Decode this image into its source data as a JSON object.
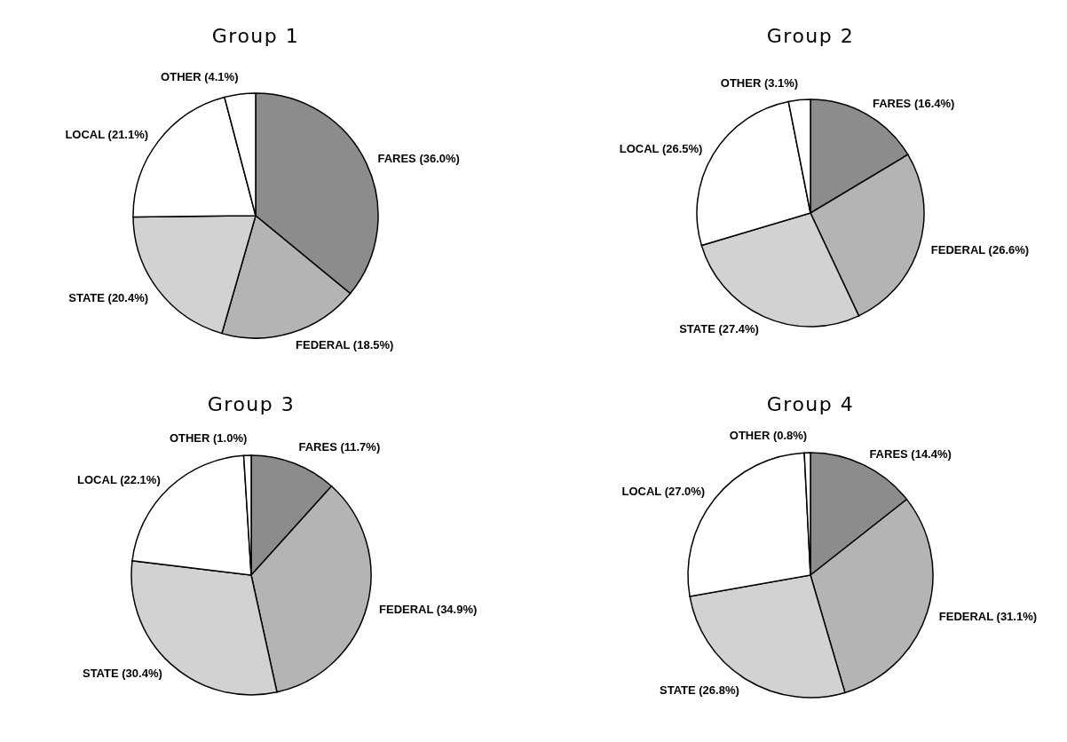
{
  "chart_data": [
    {
      "type": "pie",
      "title": "Group 1",
      "categories": [
        "FARES",
        "FEDERAL",
        "STATE",
        "LOCAL",
        "OTHER"
      ],
      "values": [
        36.0,
        18.5,
        20.4,
        21.1,
        4.1
      ],
      "value_labels": [
        "(36.0%)",
        "(18.5%)",
        "(20.4%)",
        "(21.1%)",
        "(4.1%)"
      ],
      "colors": [
        "#8c8c8c",
        "#b4b4b4",
        "#d2d2d2",
        "#ffffff",
        "#ffffff"
      ]
    },
    {
      "type": "pie",
      "title": "Group 2",
      "categories": [
        "FARES",
        "FEDERAL",
        "STATE",
        "LOCAL",
        "OTHER"
      ],
      "values": [
        16.4,
        26.6,
        27.4,
        26.5,
        3.1
      ],
      "value_labels": [
        "(16.4%)",
        "(26.6%)",
        "(27.4%)",
        "(26.5%)",
        "(3.1%)"
      ],
      "colors": [
        "#8c8c8c",
        "#b4b4b4",
        "#d2d2d2",
        "#ffffff",
        "#ffffff"
      ]
    },
    {
      "type": "pie",
      "title": "Group 3",
      "categories": [
        "FARES",
        "FEDERAL",
        "STATE",
        "LOCAL",
        "OTHER"
      ],
      "values": [
        11.7,
        34.9,
        30.4,
        22.1,
        1.0
      ],
      "value_labels": [
        "(11.7%)",
        "(34.9%)",
        "(30.4%)",
        "(22.1%)",
        "(1.0%)"
      ],
      "colors": [
        "#8c8c8c",
        "#b4b4b4",
        "#d2d2d2",
        "#ffffff",
        "#ffffff"
      ]
    },
    {
      "type": "pie",
      "title": "Group 4",
      "categories": [
        "FARES",
        "FEDERAL",
        "STATE",
        "LOCAL",
        "OTHER"
      ],
      "values": [
        14.4,
        31.1,
        26.8,
        27.0,
        0.8
      ],
      "value_labels": [
        "(14.4%)",
        "(31.1%)",
        "(26.8%)",
        "(27.0%)",
        "(0.8%)"
      ],
      "colors": [
        "#8c8c8c",
        "#b4b4b4",
        "#d2d2d2",
        "#ffffff",
        "#ffffff"
      ]
    }
  ]
}
